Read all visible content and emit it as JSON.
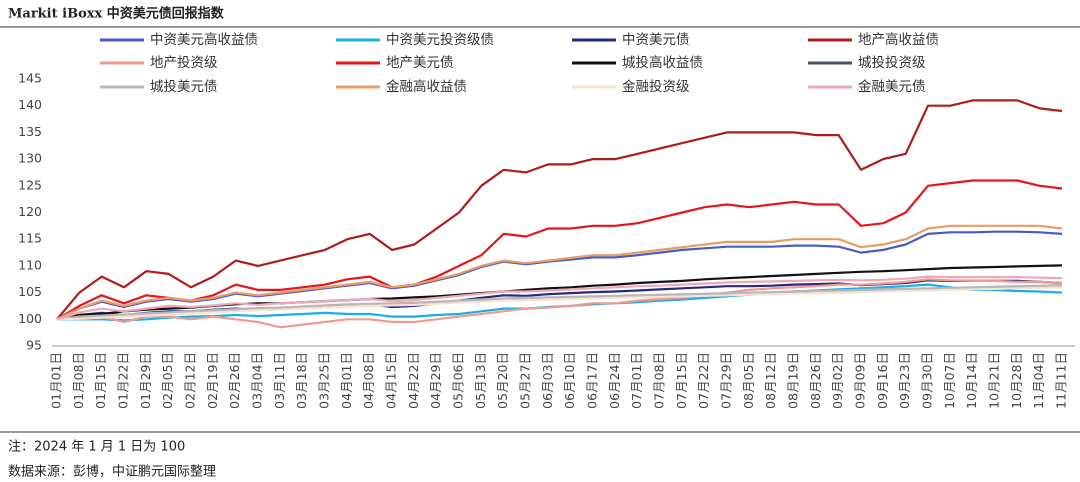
{
  "chart_data": {
    "type": "line",
    "title": "Markit iBoxx 中资美元债回报指数",
    "categories": [
      "01月01日",
      "01月08日",
      "01月15日",
      "01月22日",
      "01月29日",
      "02月05日",
      "02月12日",
      "02月19日",
      "02月26日",
      "03月04日",
      "03月11日",
      "03月18日",
      "03月25日",
      "04月01日",
      "04月08日",
      "04月15日",
      "04月22日",
      "04月29日",
      "05月06日",
      "05月13日",
      "05月20日",
      "05月27日",
      "06月03日",
      "06月10日",
      "06月17日",
      "06月24日",
      "07月01日",
      "07月08日",
      "07月15日",
      "07月22日",
      "07月29日",
      "08月05日",
      "08月12日",
      "08月19日",
      "08月26日",
      "09月02日",
      "09月09日",
      "09月16日",
      "09月23日",
      "09月30日",
      "10月07日",
      "10月14日",
      "10月21日",
      "10月28日",
      "11月04日",
      "11月11日"
    ],
    "ylim": [
      95,
      145
    ],
    "yticks": [
      95,
      100,
      105,
      110,
      115,
      120,
      125,
      130,
      135,
      140,
      145
    ],
    "series": [
      {
        "name": "中资美元高收益债",
        "color": "#4a5bc4",
        "values": [
          100,
          102,
          103.3,
          102.3,
          103.3,
          103.8,
          103.3,
          103.8,
          104.8,
          104.3,
          104.8,
          105.3,
          105.8,
          106.3,
          106.8,
          105.8,
          106.3,
          107.3,
          108.3,
          109.8,
          110.8,
          110.3,
          110.8,
          111.2,
          111.6,
          111.6,
          112,
          112.5,
          113,
          113.3,
          113.6,
          113.6,
          113.6,
          113.8,
          113.8,
          113.6,
          112.5,
          113,
          114,
          116,
          116.3,
          116.3,
          116.4,
          116.4,
          116.3,
          116
        ]
      },
      {
        "name": "中资美元投资级债",
        "color": "#1aaee6",
        "values": [
          100,
          100,
          100,
          99.8,
          100,
          100.3,
          100.5,
          100.6,
          100.8,
          100.6,
          100.8,
          101,
          101.2,
          101,
          101,
          100.5,
          100.5,
          100.8,
          101,
          101.5,
          102,
          102,
          102.3,
          102.5,
          102.8,
          103,
          103.2,
          103.5,
          103.7,
          104,
          104.3,
          104.6,
          104.8,
          105.2,
          105.4,
          105.6,
          105.8,
          106,
          106.2,
          106.5,
          106,
          105.5,
          105.5,
          105.3,
          105.2,
          105
        ]
      },
      {
        "name": "中资美元债",
        "color": "#27287c",
        "values": [
          100,
          100.8,
          101.2,
          100.8,
          101.2,
          101.5,
          101.5,
          101.8,
          102,
          101.8,
          102,
          102.2,
          102.4,
          102.6,
          102.8,
          102.3,
          102.5,
          103,
          103.5,
          104,
          104.5,
          104.4,
          104.7,
          104.9,
          105.1,
          105.2,
          105.4,
          105.6,
          105.8,
          106,
          106.2,
          106.2,
          106.3,
          106.5,
          106.6,
          106.7,
          106.4,
          106.6,
          106.8,
          107.3,
          107.2,
          107.2,
          107.2,
          107.2,
          107,
          106.8
        ]
      },
      {
        "name": "地产高收益债",
        "color": "#b01c1c",
        "values": [
          100,
          105,
          108,
          106,
          109,
          108.5,
          106,
          108,
          111,
          110,
          111,
          112,
          113,
          115,
          116,
          113,
          114,
          117,
          120,
          125,
          128,
          127.5,
          129,
          129,
          130,
          130,
          131,
          132,
          133,
          134,
          135,
          135,
          135,
          135,
          134.5,
          134.5,
          128,
          130,
          131,
          140,
          140,
          141,
          141,
          141,
          139.5,
          139
        ]
      },
      {
        "name": "地产投资级",
        "color": "#f29a92",
        "values": [
          100,
          100.5,
          100.5,
          99.5,
          100.5,
          100.5,
          100,
          100.5,
          100,
          99.5,
          98.5,
          99,
          99.5,
          100,
          100,
          99.5,
          99.5,
          100,
          100.5,
          101,
          101.5,
          102,
          102.2,
          102.5,
          103,
          103,
          103.5,
          103.8,
          104,
          104.5,
          105,
          105.5,
          105.8,
          106,
          106.2,
          106.5,
          106.5,
          106.7,
          107,
          107.5,
          107.3,
          107.2,
          107.2,
          107,
          107,
          106.8
        ]
      },
      {
        "name": "地产美元债",
        "color": "#e8141a",
        "values": [
          100,
          102.5,
          104.5,
          103,
          104.5,
          104,
          103.5,
          104.5,
          106.5,
          105.5,
          105.5,
          106,
          106.5,
          107.5,
          108,
          106,
          106.5,
          108,
          110,
          112,
          116,
          115.5,
          117,
          117,
          117.5,
          117.5,
          118,
          119,
          120,
          121,
          121.5,
          121,
          121.5,
          122,
          121.5,
          121.5,
          117.5,
          118,
          120,
          125,
          125.5,
          126,
          126,
          126,
          125,
          124.5
        ]
      },
      {
        "name": "城投高收益债",
        "color": "#111111",
        "values": [
          100,
          100.8,
          101,
          101.5,
          101.8,
          102,
          102.2,
          102.5,
          102.8,
          103,
          103,
          103.2,
          103.4,
          103.6,
          103.8,
          103.9,
          104.1,
          104.3,
          104.6,
          104.9,
          105.2,
          105.5,
          105.8,
          106,
          106.3,
          106.5,
          106.8,
          107,
          107.2,
          107.5,
          107.7,
          107.9,
          108.1,
          108.3,
          108.5,
          108.7,
          108.9,
          109,
          109.2,
          109.4,
          109.6,
          109.7,
          109.8,
          109.9,
          110,
          110.1
        ]
      },
      {
        "name": "城投投资级",
        "color": "#4a5568",
        "values": [
          100,
          100.3,
          100.5,
          100.7,
          100.9,
          101.1,
          101.3,
          101.5,
          101.7,
          101.9,
          102,
          102.2,
          102.4,
          102.6,
          102.7,
          102.8,
          102.9,
          103.1,
          103.3,
          103.5,
          103.7,
          103.8,
          103.9,
          104,
          104.1,
          104.2,
          104.3,
          104.4,
          104.5,
          104.6,
          104.7,
          104.8,
          104.9,
          105,
          105.1,
          105.2,
          105.3,
          105.4,
          105.5,
          105.6,
          105.7,
          105.8,
          105.9,
          106,
          106.1,
          106.2
        ]
      },
      {
        "name": "城投美元债",
        "color": "#b8b8b8",
        "values": [
          100,
          100.5,
          100.7,
          100.9,
          101.1,
          101.3,
          101.5,
          101.7,
          101.9,
          102.1,
          102.2,
          102.4,
          102.6,
          102.8,
          102.9,
          103,
          103.1,
          103.3,
          103.5,
          103.7,
          103.9,
          104,
          104.1,
          104.2,
          104.3,
          104.4,
          104.5,
          104.6,
          104.7,
          104.8,
          104.9,
          105,
          105.1,
          105.2,
          105.3,
          105.4,
          105.5,
          105.6,
          105.7,
          105.8,
          105.9,
          106,
          106.1,
          106.2,
          106.3,
          106.4
        ]
      },
      {
        "name": "金融高收益债",
        "color": "#e89c66",
        "values": [
          100,
          102,
          103.5,
          102.5,
          103.5,
          104,
          103.5,
          104,
          105,
          104.5,
          105,
          105.5,
          106,
          106.5,
          107,
          106,
          106.5,
          107.5,
          108.5,
          110,
          111,
          110.5,
          111,
          111.5,
          112,
          112,
          112.5,
          113,
          113.5,
          114,
          114.5,
          114.5,
          114.5,
          115,
          115,
          115,
          113.5,
          114,
          115,
          117,
          117.5,
          117.5,
          117.5,
          117.5,
          117.5,
          117
        ]
      },
      {
        "name": "金融投资级",
        "color": "#f8e2d2",
        "values": [
          100,
          100.1,
          100.3,
          100.5,
          100.7,
          100.9,
          101.1,
          101.3,
          101.5,
          101.7,
          101.8,
          102,
          102.2,
          102.4,
          102.5,
          102.6,
          102.7,
          102.9,
          103.1,
          103.3,
          103.5,
          103.6,
          103.7,
          103.8,
          103.9,
          104,
          104.1,
          104.2,
          104.3,
          104.4,
          104.5,
          104.6,
          104.7,
          104.8,
          104.9,
          105,
          105.1,
          105.2,
          105.3,
          105.4,
          105.5,
          105.6,
          105.7,
          105.8,
          105.9,
          106
        ]
      },
      {
        "name": "金融美元债",
        "color": "#f0a8b8",
        "values": [
          100,
          101.3,
          102,
          101.5,
          102,
          102.5,
          102.3,
          102.6,
          103,
          102.7,
          103,
          103.2,
          103.4,
          103.6,
          103.8,
          103.4,
          103.6,
          104,
          104.4,
          104.8,
          105.2,
          105.2,
          105.4,
          105.6,
          105.8,
          106,
          106.2,
          106.3,
          106.5,
          106.7,
          106.9,
          107,
          107.1,
          107.2,
          107.3,
          107.4,
          107.3,
          107.4,
          107.6,
          108,
          107.9,
          107.9,
          107.9,
          107.9,
          107.8,
          107.7
        ]
      }
    ],
    "footnotes": [
      "注：2024 年 1 月 1 日为 100",
      "数据来源：彭博，中证鹏元国际整理"
    ]
  }
}
